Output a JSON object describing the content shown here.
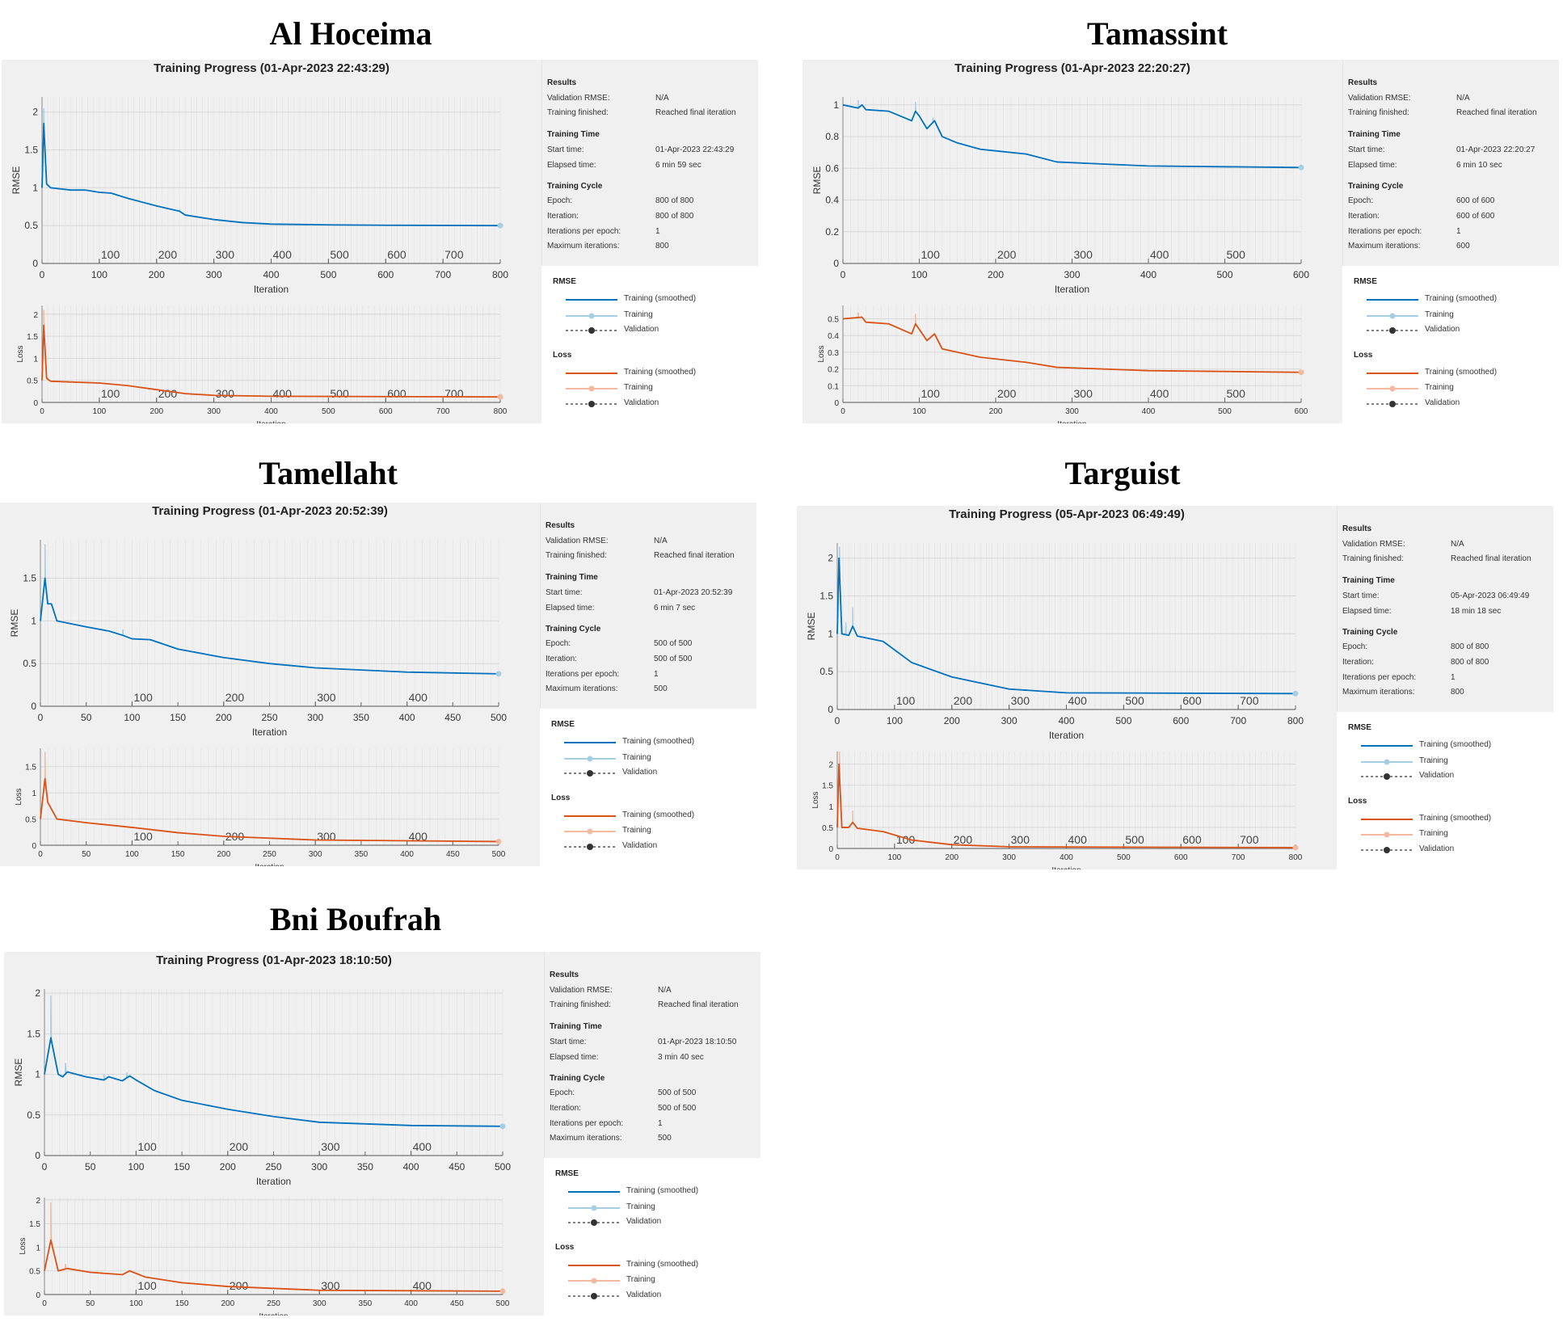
{
  "axis_labels": {
    "rmse": "RMSE",
    "loss": "Loss",
    "x": "Iteration"
  },
  "info_labels": {
    "results": "Results",
    "validation_rmse": "Validation RMSE:",
    "training_finished": "Training finished:",
    "training_time": "Training Time",
    "start_time": "Start time:",
    "elapsed_time": "Elapsed time:",
    "training_cycle": "Training Cycle",
    "epoch": "Epoch:",
    "iteration": "Iteration:",
    "iterations_per_epoch": "Iterations per epoch:",
    "maximum_iterations": "Maximum iterations:"
  },
  "legend": {
    "rmse_heading": "RMSE",
    "loss_heading": "Loss",
    "smoothed": "Training (smoothed)",
    "training": "Training",
    "validation": "Validation"
  },
  "colors": {
    "rmse_smoothed": "#0072bd",
    "rmse_training": "#a6cee3",
    "loss_smoothed": "#d95319",
    "loss_training": "#f4b99e",
    "validation": "#333333",
    "panel_bg": "#f0f0f0"
  },
  "panels": [
    {
      "station": "Al Hoceima",
      "header": "Training Progress (01-Apr-2023 22:43:29)",
      "info": {
        "validation_rmse": "N/A",
        "training_finished": "Reached final iteration",
        "start_time": "01-Apr-2023 22:43:29",
        "elapsed_time": "6 min 59 sec",
        "epoch": "800 of 800",
        "iteration": "800 of 800",
        "iterations_per_epoch": "1",
        "maximum_iterations": "800"
      }
    },
    {
      "station": "Tamassint",
      "header": "Training Progress (01-Apr-2023 22:20:27)",
      "info": {
        "validation_rmse": "N/A",
        "training_finished": "Reached final iteration",
        "start_time": "01-Apr-2023 22:20:27",
        "elapsed_time": "6 min 10 sec",
        "epoch": "600 of 600",
        "iteration": "600 of 600",
        "iterations_per_epoch": "1",
        "maximum_iterations": "600"
      }
    },
    {
      "station": "Tamellaht",
      "header": "Training Progress (01-Apr-2023 20:52:39)",
      "info": {
        "validation_rmse": "N/A",
        "training_finished": "Reached final iteration",
        "start_time": "01-Apr-2023 20:52:39",
        "elapsed_time": "6 min 7 sec",
        "epoch": "500 of 500",
        "iteration": "500 of 500",
        "iterations_per_epoch": "1",
        "maximum_iterations": "500"
      }
    },
    {
      "station": "Targuist",
      "header": "Training Progress (05-Apr-2023 06:49:49)",
      "info": {
        "validation_rmse": "N/A",
        "training_finished": "Reached final iteration",
        "start_time": "05-Apr-2023 06:49:49",
        "elapsed_time": "18 min 18 sec",
        "epoch": "800 of 800",
        "iteration": "800 of 800",
        "iterations_per_epoch": "1",
        "maximum_iterations": "800"
      }
    },
    {
      "station": "Bni Boufrah",
      "header": "Training Progress (01-Apr-2023 18:10:50)",
      "info": {
        "validation_rmse": "N/A",
        "training_finished": "Reached final iteration",
        "start_time": "01-Apr-2023 18:10:50",
        "elapsed_time": "3 min 40 sec",
        "epoch": "500 of 500",
        "iteration": "500 of 500",
        "iterations_per_epoch": "1",
        "maximum_iterations": "500"
      }
    }
  ],
  "chart_data": [
    {
      "type": "line",
      "grid": true,
      "xlim": [
        0,
        800
      ],
      "xticks": [
        0,
        100,
        200,
        300,
        400,
        500,
        600,
        700,
        800
      ],
      "epoch_ticks": [
        100,
        200,
        300,
        400,
        500,
        600,
        700
      ],
      "rmse": {
        "ylabel": "RMSE",
        "xlabel": "Iteration",
        "ylim": [
          0,
          2.2
        ],
        "yticks": [
          0,
          0.5,
          1,
          1.5,
          2
        ],
        "smoothed": [
          [
            0,
            1.0
          ],
          [
            3,
            1.85
          ],
          [
            8,
            1.05
          ],
          [
            15,
            1.0
          ],
          [
            50,
            0.97
          ],
          [
            75,
            0.97
          ],
          [
            100,
            0.94
          ],
          [
            120,
            0.93
          ],
          [
            150,
            0.86
          ],
          [
            200,
            0.76
          ],
          [
            240,
            0.69
          ],
          [
            250,
            0.64
          ],
          [
            300,
            0.58
          ],
          [
            350,
            0.54
          ],
          [
            400,
            0.52
          ],
          [
            500,
            0.51
          ],
          [
            600,
            0.505
          ],
          [
            800,
            0.5
          ]
        ],
        "training_spikes": [
          [
            3,
            2.05
          ],
          [
            240,
            0.72
          ]
        ]
      },
      "loss": {
        "ylabel": "Loss",
        "xlabel": "Iteration",
        "ylim": [
          0,
          2.2
        ],
        "yticks": [
          0,
          0.5,
          1,
          1.5,
          2
        ],
        "smoothed": [
          [
            0,
            0.5
          ],
          [
            3,
            1.75
          ],
          [
            8,
            0.55
          ],
          [
            15,
            0.48
          ],
          [
            100,
            0.44
          ],
          [
            150,
            0.38
          ],
          [
            200,
            0.29
          ],
          [
            250,
            0.2
          ],
          [
            300,
            0.16
          ],
          [
            400,
            0.14
          ],
          [
            800,
            0.125
          ]
        ],
        "training_spikes": [
          [
            3,
            2.1
          ]
        ]
      }
    },
    {
      "type": "line",
      "grid": true,
      "xlim": [
        0,
        600
      ],
      "xticks": [
        0,
        100,
        200,
        300,
        400,
        500,
        600
      ],
      "epoch_ticks": [
        100,
        200,
        300,
        400,
        500
      ],
      "rmse": {
        "ylabel": "RMSE",
        "xlabel": "Iteration",
        "ylim": [
          0,
          1.05
        ],
        "yticks": [
          0,
          0.2,
          0.4,
          0.6,
          0.8,
          1
        ],
        "smoothed": [
          [
            0,
            1.0
          ],
          [
            20,
            0.98
          ],
          [
            25,
            1.0
          ],
          [
            30,
            0.97
          ],
          [
            60,
            0.96
          ],
          [
            90,
            0.9
          ],
          [
            95,
            0.96
          ],
          [
            100,
            0.93
          ],
          [
            110,
            0.85
          ],
          [
            120,
            0.9
          ],
          [
            130,
            0.8
          ],
          [
            150,
            0.76
          ],
          [
            180,
            0.72
          ],
          [
            200,
            0.71
          ],
          [
            240,
            0.69
          ],
          [
            280,
            0.64
          ],
          [
            350,
            0.625
          ],
          [
            400,
            0.615
          ],
          [
            600,
            0.605
          ]
        ],
        "training_spikes": [
          [
            20,
            1.03
          ],
          [
            95,
            1.02
          ],
          [
            118,
            0.92
          ]
        ]
      },
      "loss": {
        "ylabel": "Loss",
        "xlabel": "Iteration",
        "ylim": [
          0,
          0.58
        ],
        "yticks": [
          0,
          0.1,
          0.2,
          0.3,
          0.4,
          0.5
        ],
        "smoothed": [
          [
            0,
            0.5
          ],
          [
            25,
            0.51
          ],
          [
            30,
            0.48
          ],
          [
            60,
            0.47
          ],
          [
            90,
            0.41
          ],
          [
            95,
            0.47
          ],
          [
            110,
            0.37
          ],
          [
            120,
            0.41
          ],
          [
            130,
            0.32
          ],
          [
            180,
            0.27
          ],
          [
            240,
            0.24
          ],
          [
            280,
            0.21
          ],
          [
            400,
            0.19
          ],
          [
            600,
            0.18
          ]
        ],
        "training_spikes": [
          [
            20,
            0.54
          ],
          [
            95,
            0.53
          ]
        ]
      }
    },
    {
      "type": "line",
      "grid": true,
      "xlim": [
        0,
        500
      ],
      "xticks": [
        0,
        50,
        100,
        150,
        200,
        250,
        300,
        350,
        400,
        450,
        500
      ],
      "epoch_ticks": [
        100,
        200,
        300,
        400
      ],
      "rmse": {
        "ylabel": "RMSE",
        "xlabel": "Iteration",
        "ylim": [
          0,
          1.95
        ],
        "yticks": [
          0,
          0.5,
          1,
          1.5
        ],
        "smoothed": [
          [
            0,
            1.0
          ],
          [
            5,
            1.5
          ],
          [
            8,
            1.2
          ],
          [
            12,
            1.2
          ],
          [
            18,
            1.0
          ],
          [
            50,
            0.93
          ],
          [
            75,
            0.88
          ],
          [
            90,
            0.83
          ],
          [
            100,
            0.79
          ],
          [
            120,
            0.78
          ],
          [
            150,
            0.67
          ],
          [
            200,
            0.57
          ],
          [
            250,
            0.5
          ],
          [
            300,
            0.45
          ],
          [
            400,
            0.4
          ],
          [
            500,
            0.38
          ]
        ],
        "training_spikes": [
          [
            5,
            1.9
          ],
          [
            90,
            0.9
          ]
        ]
      },
      "loss": {
        "ylabel": "Loss",
        "xlabel": "Iteration",
        "ylim": [
          0,
          1.85
        ],
        "yticks": [
          0,
          0.5,
          1,
          1.5
        ],
        "smoothed": [
          [
            0,
            0.5
          ],
          [
            5,
            1.27
          ],
          [
            8,
            0.82
          ],
          [
            18,
            0.5
          ],
          [
            50,
            0.43
          ],
          [
            100,
            0.34
          ],
          [
            150,
            0.24
          ],
          [
            200,
            0.17
          ],
          [
            300,
            0.1
          ],
          [
            500,
            0.07
          ]
        ],
        "training_spikes": [
          [
            5,
            1.78
          ]
        ]
      }
    },
    {
      "type": "line",
      "grid": true,
      "xlim": [
        0,
        800
      ],
      "xticks": [
        0,
        100,
        200,
        300,
        400,
        500,
        600,
        700,
        800
      ],
      "epoch_ticks": [
        100,
        200,
        300,
        400,
        500,
        600,
        700
      ],
      "rmse": {
        "ylabel": "RMSE",
        "xlabel": "Iteration",
        "ylim": [
          0,
          2.2
        ],
        "yticks": [
          0,
          0.5,
          1,
          1.5,
          2
        ],
        "smoothed": [
          [
            0,
            1.0
          ],
          [
            3,
            2.0
          ],
          [
            8,
            1.0
          ],
          [
            20,
            0.98
          ],
          [
            27,
            1.1
          ],
          [
            35,
            0.97
          ],
          [
            80,
            0.9
          ],
          [
            130,
            0.62
          ],
          [
            200,
            0.43
          ],
          [
            250,
            0.35
          ],
          [
            300,
            0.27
          ],
          [
            400,
            0.22
          ],
          [
            800,
            0.21
          ]
        ],
        "training_spikes": [
          [
            4,
            2.15
          ],
          [
            27,
            1.35
          ],
          [
            15,
            1.15
          ]
        ]
      },
      "loss": {
        "ylabel": "Loss",
        "xlabel": "Iteration",
        "ylim": [
          0,
          2.3
        ],
        "yticks": [
          0,
          0.5,
          1,
          1.5,
          2
        ],
        "smoothed": [
          [
            0,
            0.5
          ],
          [
            3,
            2.0
          ],
          [
            8,
            0.5
          ],
          [
            20,
            0.5
          ],
          [
            27,
            0.62
          ],
          [
            35,
            0.48
          ],
          [
            80,
            0.4
          ],
          [
            130,
            0.2
          ],
          [
            200,
            0.09
          ],
          [
            300,
            0.04
          ],
          [
            800,
            0.02
          ]
        ],
        "training_spikes": [
          [
            4,
            2.3
          ],
          [
            27,
            0.9
          ]
        ]
      }
    },
    {
      "type": "line",
      "grid": true,
      "xlim": [
        0,
        500
      ],
      "xticks": [
        0,
        50,
        100,
        150,
        200,
        250,
        300,
        350,
        400,
        450,
        500
      ],
      "epoch_ticks": [
        100,
        200,
        300,
        400
      ],
      "rmse": {
        "ylabel": "RMSE",
        "xlabel": "Iteration",
        "ylim": [
          0,
          2.05
        ],
        "yticks": [
          0,
          0.5,
          1,
          1.5,
          2
        ],
        "smoothed": [
          [
            0,
            1.0
          ],
          [
            7,
            1.45
          ],
          [
            15,
            1.0
          ],
          [
            20,
            0.97
          ],
          [
            25,
            1.03
          ],
          [
            45,
            0.97
          ],
          [
            65,
            0.93
          ],
          [
            70,
            0.97
          ],
          [
            85,
            0.92
          ],
          [
            93,
            0.98
          ],
          [
            100,
            0.93
          ],
          [
            120,
            0.8
          ],
          [
            150,
            0.68
          ],
          [
            200,
            0.57
          ],
          [
            250,
            0.48
          ],
          [
            300,
            0.41
          ],
          [
            400,
            0.37
          ],
          [
            500,
            0.36
          ]
        ],
        "training_spikes": [
          [
            7,
            1.97
          ],
          [
            23,
            1.14
          ],
          [
            65,
            1.0
          ],
          [
            90,
            1.02
          ]
        ]
      },
      "loss": {
        "ylabel": "Loss",
        "xlabel": "Iteration",
        "ylim": [
          0,
          2.05
        ],
        "yticks": [
          0,
          0.5,
          1,
          1.5,
          2
        ],
        "smoothed": [
          [
            0,
            0.5
          ],
          [
            7,
            1.15
          ],
          [
            15,
            0.5
          ],
          [
            25,
            0.55
          ],
          [
            50,
            0.47
          ],
          [
            85,
            0.42
          ],
          [
            93,
            0.5
          ],
          [
            110,
            0.37
          ],
          [
            150,
            0.25
          ],
          [
            200,
            0.17
          ],
          [
            300,
            0.09
          ],
          [
            500,
            0.07
          ]
        ],
        "training_spikes": [
          [
            7,
            1.95
          ],
          [
            23,
            0.65
          ]
        ]
      }
    }
  ]
}
